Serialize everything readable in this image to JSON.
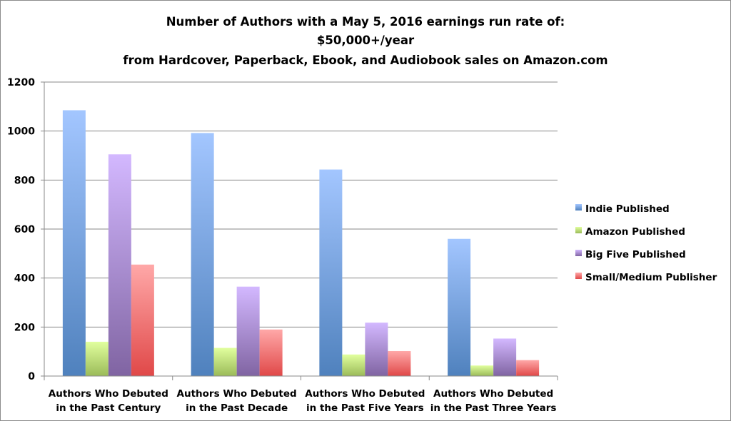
{
  "chart_data": {
    "type": "bar",
    "title_lines": [
      "Number of Authors with a May 5, 2016 earnings run rate of:",
      "$50,000+/year",
      "from Hardcover, Paperback, Ebook, and Audiobook sales on Amazon.com"
    ],
    "categories": [
      [
        "Authors Who Debuted",
        "in the Past Century"
      ],
      [
        "Authors Who Debuted",
        "in the Past Decade"
      ],
      [
        "Authors Who Debuted",
        "in the Past Five Years"
      ],
      [
        "Authors Who Debuted",
        "in the Past Three Years"
      ]
    ],
    "series": [
      {
        "name": "Indie Published",
        "color": "#4f81bd",
        "color_light": "#a3c6ff",
        "values": [
          1085,
          992,
          843,
          560
        ]
      },
      {
        "name": "Amazon Published",
        "color": "#9bbb59",
        "color_light": "#e1ff9e",
        "values": [
          140,
          115,
          88,
          43
        ]
      },
      {
        "name": "Big Five Published",
        "color": "#8064a2",
        "color_light": "#d3b8ff",
        "values": [
          905,
          365,
          218,
          153
        ]
      },
      {
        "name": "Small/Medium Publisher",
        "color": "#e04848",
        "color_light": "#ffa8a8",
        "values": [
          455,
          190,
          102,
          65
        ]
      }
    ],
    "ylim": [
      0,
      1200
    ],
    "yticks": [
      0,
      200,
      400,
      600,
      800,
      1000,
      1200
    ],
    "grid": true,
    "legend_position": "right"
  }
}
